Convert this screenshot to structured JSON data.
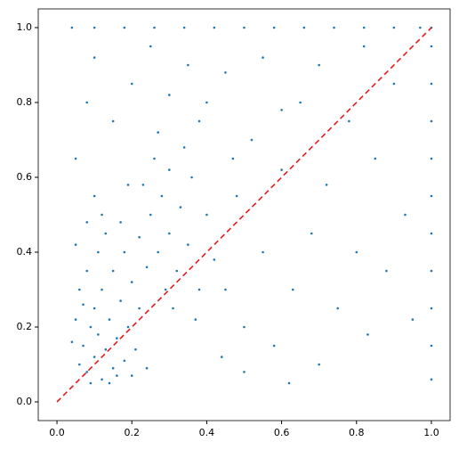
{
  "chart_data": {
    "type": "scatter",
    "xlim": [
      -0.05,
      1.05
    ],
    "ylim": [
      -0.05,
      1.05
    ],
    "xticks": [
      {
        "value": 0,
        "label": "0.0"
      },
      0.2,
      0.4,
      0.6,
      0.8,
      {
        "value": 1,
        "label": "1.0"
      }
    ],
    "yticks": [
      {
        "value": 0,
        "label": "0.0"
      },
      0.2,
      0.4,
      0.6,
      0.8,
      {
        "value": 1,
        "label": "1.0"
      }
    ],
    "grid": false,
    "series": [
      {
        "color": "#1f77b4",
        "x": [
          0.06,
          0.07,
          0.08,
          0.09,
          0.1,
          0.1,
          0.11,
          0.12,
          0.12,
          0.13,
          0.14,
          0.15,
          0.15,
          0.16,
          0.17,
          0.18,
          0.18,
          0.19,
          0.2,
          0.21,
          0.22,
          0.05,
          0.06,
          0.07,
          0.08,
          0.09,
          0.11,
          0.13,
          0.14,
          0.16,
          0.2,
          0.24,
          0.04,
          0.05,
          0.08,
          0.1,
          0.12,
          0.17,
          0.19,
          0.22,
          0.25,
          0.27,
          0.28,
          0.3,
          0.3,
          0.32,
          0.33,
          0.35,
          0.36,
          0.38,
          0.26,
          0.29,
          0.34,
          0.24,
          0.4,
          0.23,
          0.31,
          0.37,
          0.42,
          0.27,
          0.45,
          0.48,
          0.5,
          0.52,
          0.55,
          0.58,
          0.6,
          0.63,
          0.65,
          0.68,
          0.7,
          0.72,
          0.75,
          0.78,
          0.8,
          0.83,
          0.85,
          0.88,
          0.9,
          0.93,
          0.95,
          0.4,
          0.35,
          0.2,
          0.15,
          0.1,
          0.25,
          0.45,
          0.55,
          0.62,
          0.44,
          0.5,
          0.05,
          0.08,
          0.3,
          0.7,
          0.82,
          0.6,
          0.47,
          0.38,
          0.04,
          0.1,
          0.18,
          0.26,
          0.34,
          0.42,
          0.5,
          0.58,
          0.66,
          0.74,
          0.82,
          0.9,
          0.97,
          1,
          1,
          1,
          1,
          1,
          1,
          1,
          1,
          1,
          1,
          1
        ],
        "y": [
          0.1,
          0.15,
          0.08,
          0.2,
          0.12,
          0.25,
          0.18,
          0.06,
          0.3,
          0.14,
          0.22,
          0.09,
          0.35,
          0.17,
          0.27,
          0.11,
          0.4,
          0.2,
          0.32,
          0.14,
          0.25,
          0.22,
          0.3,
          0.26,
          0.35,
          0.05,
          0.4,
          0.45,
          0.05,
          0.07,
          0.07,
          0.09,
          0.16,
          0.42,
          0.48,
          0.55,
          0.5,
          0.48,
          0.58,
          0.44,
          0.5,
          0.4,
          0.55,
          0.45,
          0.62,
          0.35,
          0.52,
          0.42,
          0.6,
          0.3,
          0.65,
          0.3,
          0.68,
          0.36,
          0.5,
          0.58,
          0.25,
          0.22,
          0.38,
          0.72,
          0.3,
          0.55,
          0.2,
          0.7,
          0.4,
          0.15,
          0.62,
          0.3,
          0.8,
          0.45,
          0.1,
          0.58,
          0.25,
          0.75,
          0.4,
          0.18,
          0.65,
          0.35,
          0.85,
          0.5,
          0.22,
          0.8,
          0.9,
          0.85,
          0.75,
          0.92,
          0.95,
          0.88,
          0.92,
          0.05,
          0.12,
          0.08,
          0.65,
          0.8,
          0.82,
          0.9,
          0.95,
          0.78,
          0.65,
          0.75,
          1,
          1,
          1,
          1,
          1,
          1,
          1,
          1,
          1,
          1,
          1,
          1,
          1,
          0.06,
          0.15,
          0.25,
          0.35,
          0.45,
          0.55,
          0.65,
          0.75,
          0.85,
          0.95,
          1
        ]
      }
    ],
    "reference_line": {
      "x": [
        0,
        1
      ],
      "y": [
        0,
        1
      ],
      "color": "#e41a1c",
      "dashed": true
    }
  }
}
